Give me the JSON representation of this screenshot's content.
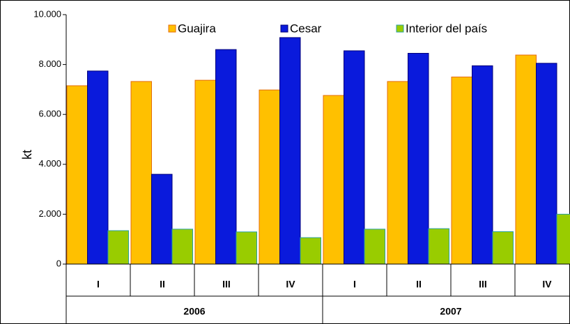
{
  "chart_data": {
    "type": "bar",
    "y_label": "kt",
    "categories": [
      "I",
      "II",
      "III",
      "IV",
      "I",
      "II",
      "III",
      "IV"
    ],
    "groups": [
      "2006",
      "2007"
    ],
    "series": [
      {
        "name": "Guajira",
        "color": "#ffc000",
        "values": [
          7150,
          7320,
          7370,
          6980,
          6760,
          7320,
          7500,
          8380
        ]
      },
      {
        "name": "Cesar",
        "color": "#0a1adc",
        "values": [
          7740,
          3600,
          8600,
          9080,
          8550,
          8450,
          7950,
          8050
        ]
      },
      {
        "name": "Interior del país",
        "color": "#99cc00",
        "values": [
          1340,
          1400,
          1290,
          1060,
          1400,
          1420,
          1300,
          2000
        ]
      }
    ],
    "ylim": [
      0,
      10000
    ],
    "yticks": [
      0,
      {
        "value": 2000,
        "label": "2.000"
      },
      {
        "value": 4000,
        "label": "4.000"
      },
      {
        "value": 6000,
        "label": "6.000"
      },
      {
        "value": 8000,
        "label": "8.000"
      },
      {
        "value": 10000,
        "label": "10.000"
      }
    ],
    "legend": "top"
  }
}
